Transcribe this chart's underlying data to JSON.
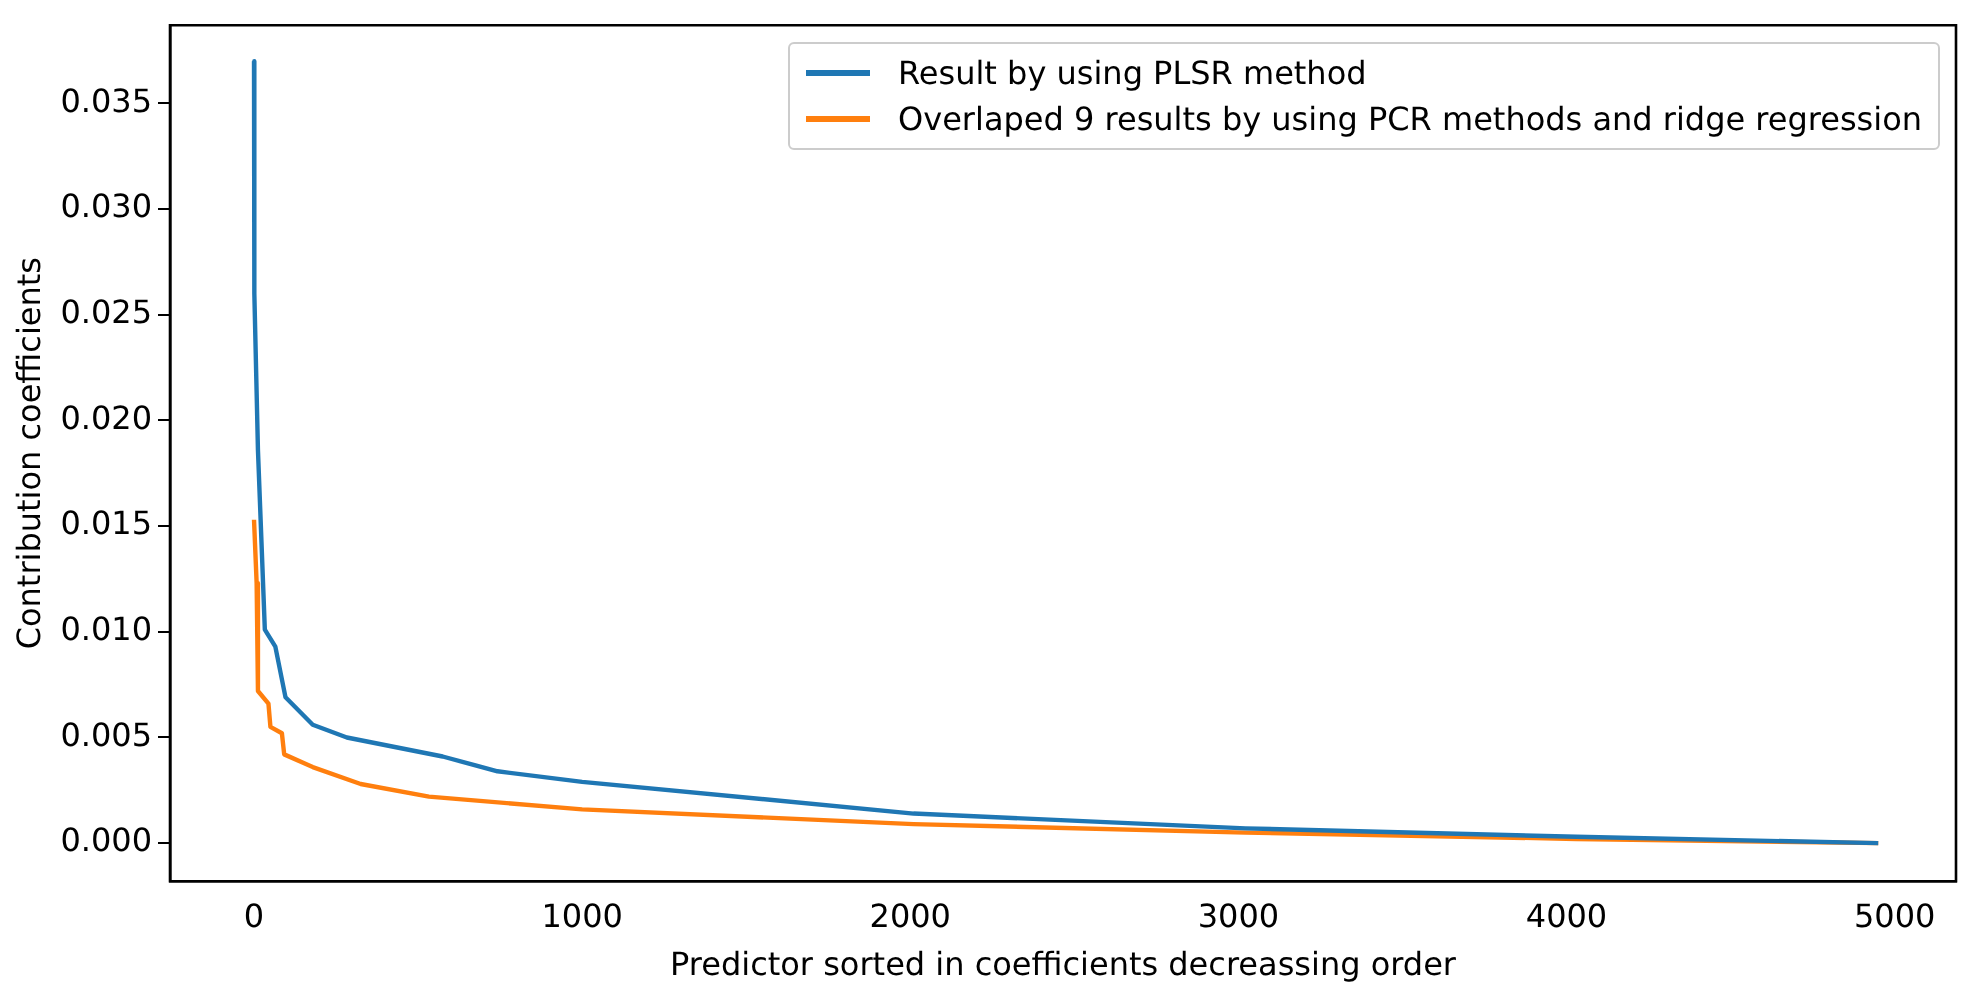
{
  "chart_data": {
    "type": "line",
    "xlabel": "Predictor sorted in coefficients decreassing order",
    "ylabel": "Contribution coefficients",
    "xlim": [
      -256,
      5187
    ],
    "xticks": [
      0,
      1000,
      2000,
      3000,
      4000,
      5000
    ],
    "ylim": [
      -0.0018,
      0.0387
    ],
    "yticks": [
      {
        "value": 0,
        "label": "0.000"
      },
      0.005,
      {
        "value": 0.01,
        "label": "0.010"
      },
      0.015,
      {
        "value": 0.02,
        "label": "0.020"
      },
      0.025,
      {
        "value": 0.03,
        "label": "0.030"
      },
      0.035
    ],
    "grid": false,
    "legend": "top right",
    "marker": "none",
    "line_style": "solid",
    "series": [
      {
        "name": "Result by using PLSR method",
        "color": "#1f77b4",
        "x": [
          0,
          0,
          2,
          12,
          33,
          65,
          96,
          179,
          283,
          575,
          742,
          1000,
          2010,
          3022,
          4030,
          4950
        ],
        "values": [
          0.037,
          0.026,
          0.026,
          0.0186,
          0.0101,
          0.0093,
          0.0069,
          0.0056,
          0.005,
          0.0041,
          0.0034,
          0.0029,
          0.0014,
          0.0007,
          0.0003,
          0
        ]
      },
      {
        "name": "Overlaped 9 results by using PCR methods and ridge regression",
        "color": "#ff7f0e",
        "x": [
          0,
          8,
          12,
          44,
          50,
          85,
          92,
          179,
          325,
          533,
          1000,
          2010,
          3022,
          4030,
          4950
        ],
        "values": [
          0.0153,
          0.0123,
          0.0072,
          0.0066,
          0.0055,
          0.0052,
          0.0042,
          0.0036,
          0.0028,
          0.0022,
          0.0016,
          0.0009,
          0.0005,
          0.0002,
          0
        ]
      }
    ]
  }
}
